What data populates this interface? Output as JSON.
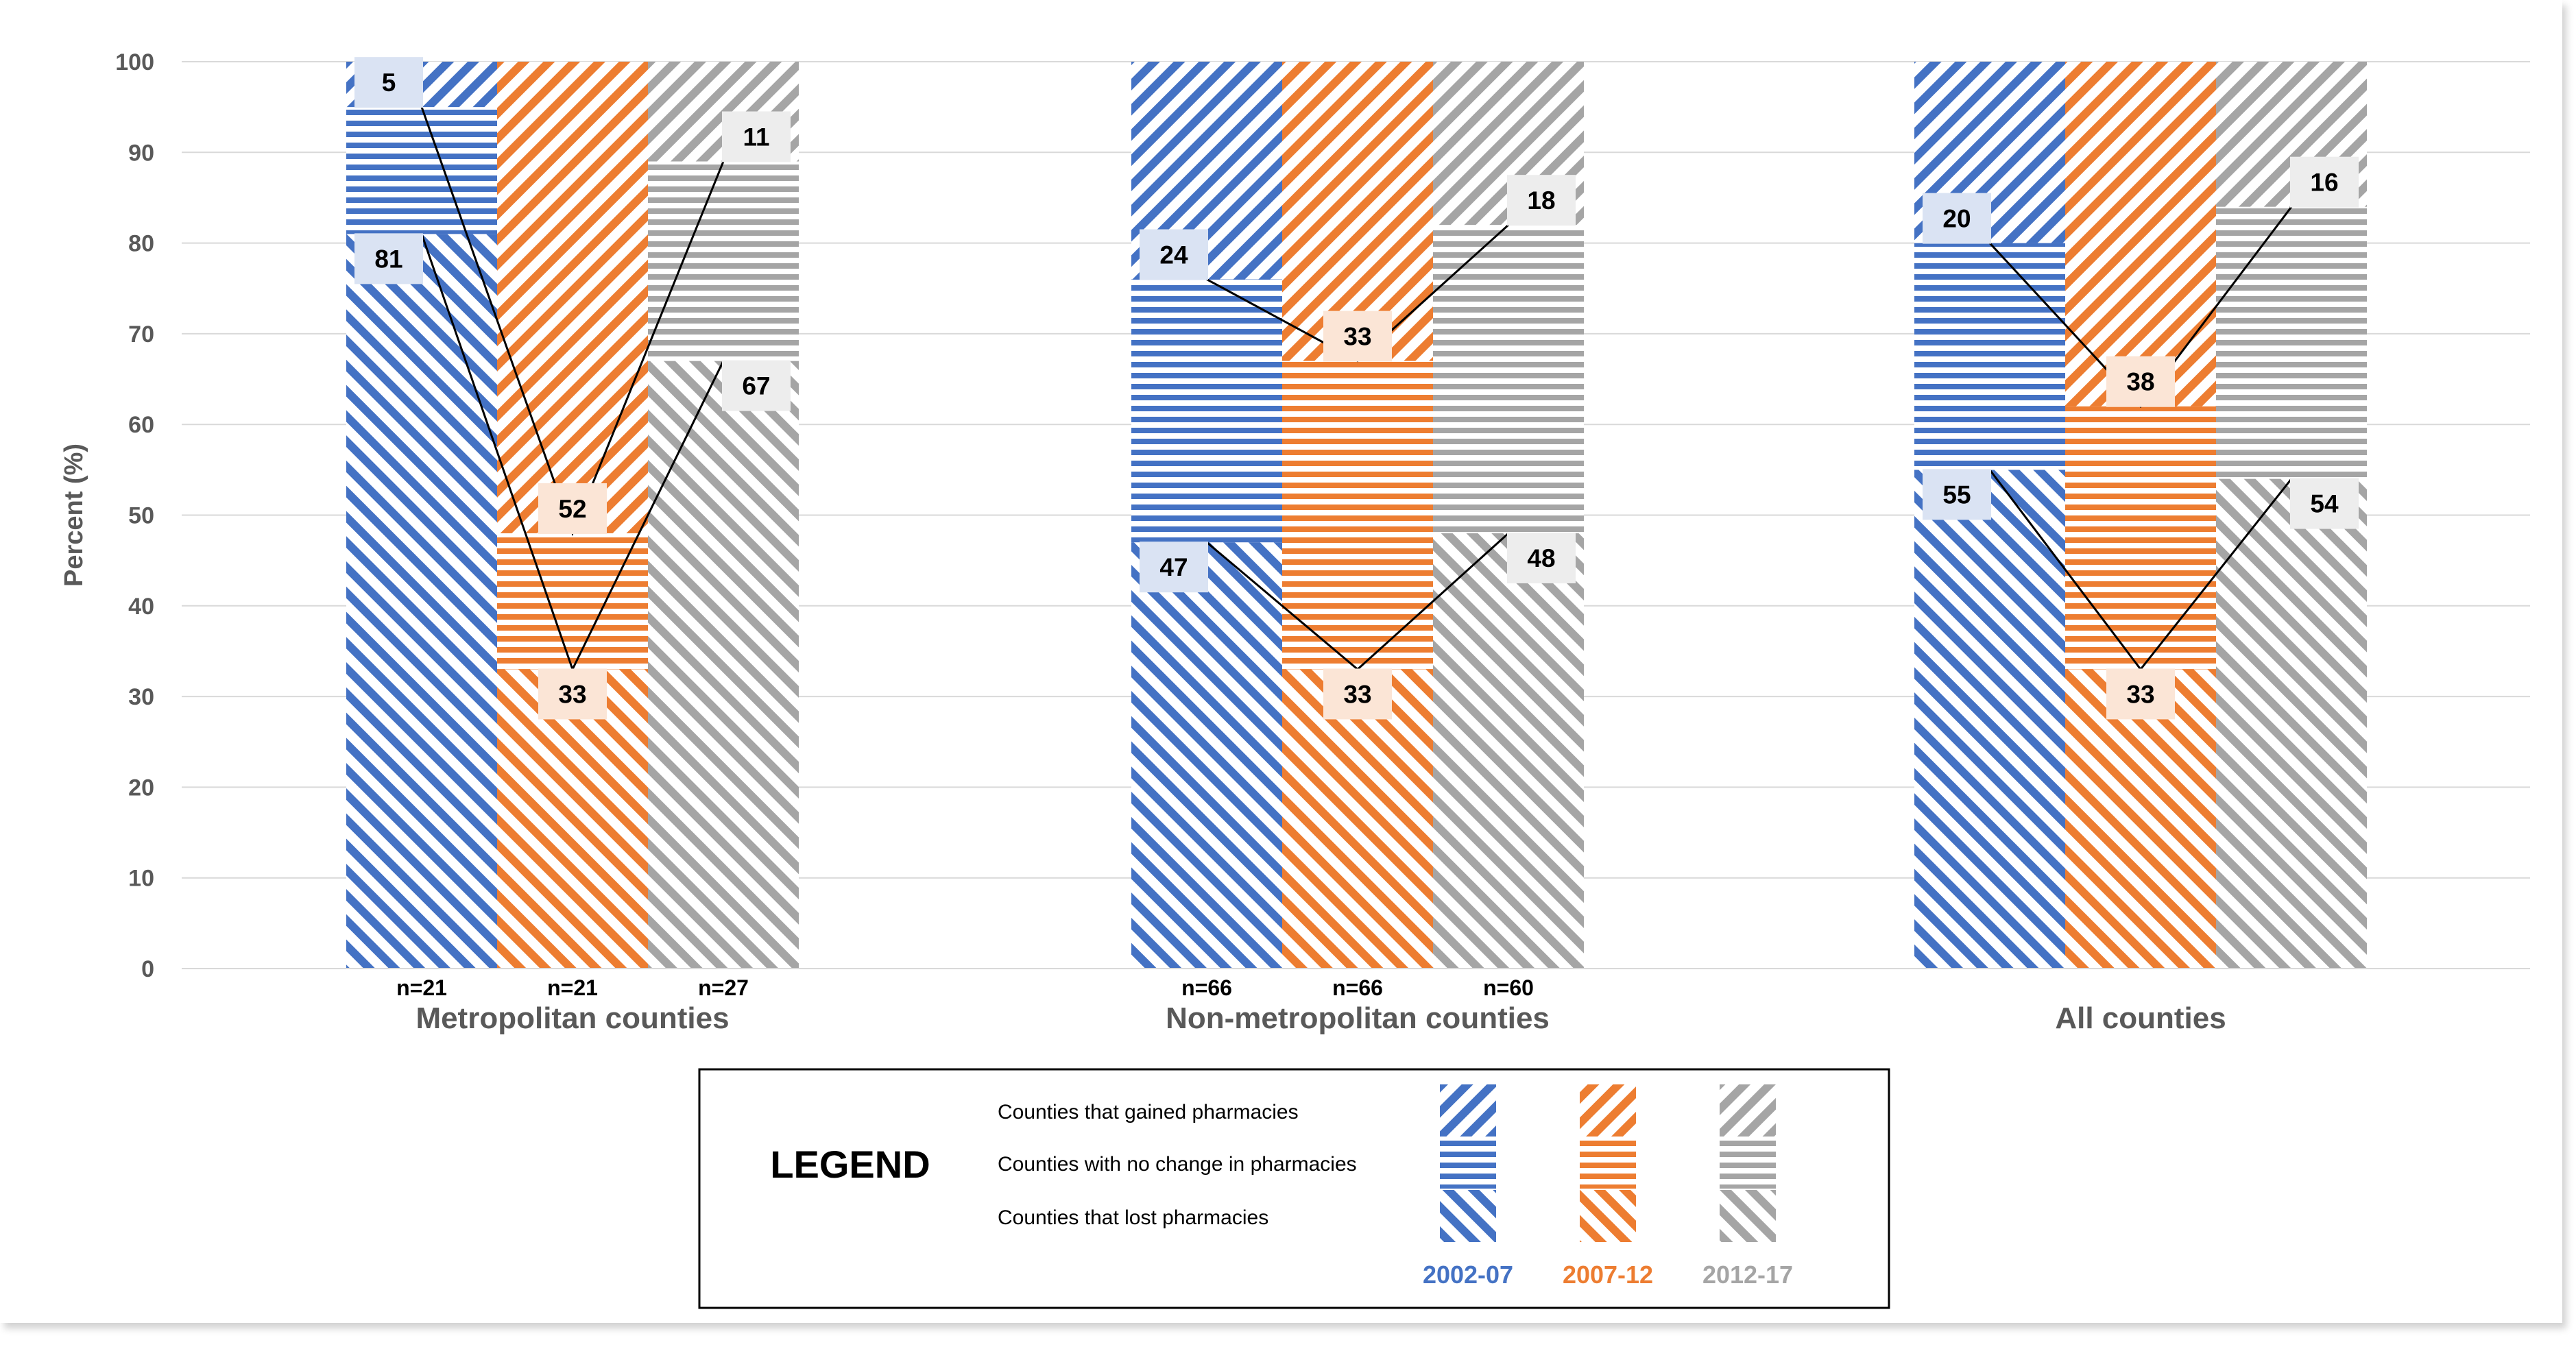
{
  "chart_data": {
    "type": "bar",
    "stacked": true,
    "ylabel": "Percent (%)",
    "ylim": [
      0,
      100
    ],
    "yticks": [
      "0",
      "10",
      "20",
      "30",
      "40",
      "50",
      "60",
      "70",
      "80",
      "90",
      "100"
    ],
    "grid": true,
    "groups": [
      {
        "name": "Metropolitan counties",
        "bars": [
          {
            "period": "2002-07",
            "n_label": "n=21",
            "lost": 81,
            "no_change": 14,
            "gained": 5
          },
          {
            "period": "2007-12",
            "n_label": "n=21",
            "lost": 33,
            "no_change": 15,
            "gained": 52
          },
          {
            "period": "2012-17",
            "n_label": "n=27",
            "lost": 67,
            "no_change": 22,
            "gained": 11
          }
        ]
      },
      {
        "name": "Non-metropolitan counties",
        "bars": [
          {
            "period": "2002-07",
            "n_label": "n=66",
            "lost": 47,
            "no_change": 29,
            "gained": 24
          },
          {
            "period": "2007-12",
            "n_label": "n=66",
            "lost": 33,
            "no_change": 34,
            "gained": 33
          },
          {
            "period": "2012-17",
            "n_label": "n=60",
            "lost": 48,
            "no_change": 34,
            "gained": 18
          }
        ]
      },
      {
        "name": "All counties",
        "bars": [
          {
            "period": "2002-07",
            "n_label": "",
            "lost": 55,
            "no_change": 25,
            "gained": 20
          },
          {
            "period": "2007-12",
            "n_label": "",
            "lost": 33,
            "no_change": 29,
            "gained": 38
          },
          {
            "period": "2012-17",
            "n_label": "",
            "lost": 54,
            "no_change": 30,
            "gained": 16
          }
        ]
      }
    ],
    "legend": {
      "title": "LEGEND",
      "rows": [
        {
          "key": "gained",
          "label": "Counties that gained pharmacies",
          "pattern": "diagonal-up"
        },
        {
          "key": "no_change",
          "label": "Counties with no change in pharmacies",
          "pattern": "horizontal"
        },
        {
          "key": "lost",
          "label": "Counties that lost pharmacies",
          "pattern": "diagonal-down"
        }
      ],
      "periods": [
        {
          "label": "2002-07",
          "color": "#4472C4"
        },
        {
          "label": "2007-12",
          "color": "#ED7D31"
        },
        {
          "label": "2012-17",
          "color": "#A5A5A5"
        }
      ]
    },
    "label_box_colors": {
      "2002-07": "#DAE3F3",
      "2007-12": "#FBE5D6",
      "2012-17": "#EDEDED"
    }
  }
}
